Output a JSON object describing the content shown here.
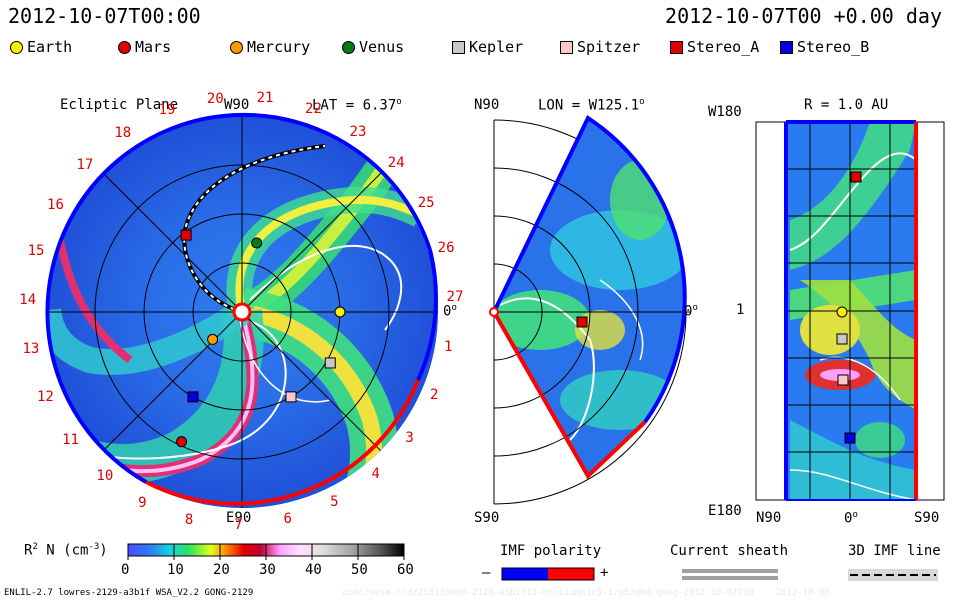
{
  "header": {
    "left_time": "2012-10-07T00:00",
    "right_time": "2012-10-07T00 +0.00 day"
  },
  "legend": [
    {
      "name": "Earth",
      "shape": "circle",
      "color": "#ffef00"
    },
    {
      "name": "Mars",
      "shape": "circle",
      "color": "#e00000"
    },
    {
      "name": "Mercury",
      "shape": "circle",
      "color": "#ff9a00"
    },
    {
      "name": "Venus",
      "shape": "circle",
      "color": "#007a1a"
    },
    {
      "name": "Kepler",
      "shape": "square",
      "color": "#c8c8c8"
    },
    {
      "name": "Spitzer",
      "shape": "square",
      "color": "#ffc8c8"
    },
    {
      "name": "Stereo_A",
      "shape": "square",
      "color": "#e00000"
    },
    {
      "name": "Stereo_B",
      "shape": "square",
      "color": "#0000e0"
    }
  ],
  "panels": {
    "ecliptic": {
      "title": "Ecliptic Plane",
      "top_label": "W90",
      "bottom_label": "E90",
      "right_label": "0",
      "lat_label": "LAT = 6.37",
      "degree_mark": "o",
      "carrington_numbers": [
        "20",
        "21",
        "22",
        "23",
        "24",
        "25",
        "26",
        "27",
        "1",
        "2",
        "3",
        "4",
        "5",
        "6",
        "7",
        "8",
        "9",
        "10",
        "11",
        "12",
        "13",
        "14",
        "15",
        "16",
        "17",
        "18",
        "19"
      ]
    },
    "meridional": {
      "top_left": "N90",
      "bottom_left": "S90",
      "lon_label": "LON = W125.1",
      "right_label": "0"
    },
    "radial": {
      "title": "R = 1.0 AU",
      "top_left": "W180",
      "mid_left": "1",
      "bottom_left": "E180",
      "x_labels": [
        "N90",
        "0",
        "S90"
      ]
    }
  },
  "colorbar": {
    "label": "R",
    "label_sup": "2",
    "label_rest": " N (cm",
    "label_sup2": "-3",
    "label_end": ")",
    "ticks": [
      "0",
      "10",
      "20",
      "30",
      "40",
      "50",
      "60"
    ]
  },
  "imf_polarity": {
    "title": "IMF polarity",
    "minus": "–",
    "plus": "+"
  },
  "current_sheath": {
    "title": "Current sheath"
  },
  "imf_line": {
    "title": "3D IMF line"
  },
  "footer": {
    "left": "ENLIL-2.7 lowres-2129-a3b1f WSA_V2.2 GONG-2129",
    "right_faint": "ccmc/vesm-cld/2581306d0-2128-a3b1f15-mtcp1umn1c5-1.g53q6d-gong-2012-10-07T00    2012-10-08"
  },
  "chart_data": {
    "type": "heatmap",
    "title": "",
    "colorbar_range": [
      0,
      60
    ],
    "colorbar_unit": "R2 N (cm-3)",
    "objects_ecliptic": [
      {
        "name": "Earth",
        "angle_deg": 0,
        "radius_au": 1.0
      },
      {
        "name": "Mercury",
        "angle_deg": 223,
        "radius_au": 0.41
      },
      {
        "name": "Venus",
        "angle_deg": 78,
        "radius_au": 0.72
      },
      {
        "name": "Mars",
        "angle_deg": 245,
        "radius_au": 1.46
      },
      {
        "name": "Kepler",
        "angle_deg": 330,
        "radius_au": 1.04
      },
      {
        "name": "Spitzer",
        "angle_deg": 300,
        "radius_au": 1.0
      },
      {
        "name": "Stereo_A",
        "angle_deg": 126,
        "radius_au": 0.97
      },
      {
        "name": "Stereo_B",
        "angle_deg": 240,
        "radius_au": 1.0
      }
    ]
  }
}
